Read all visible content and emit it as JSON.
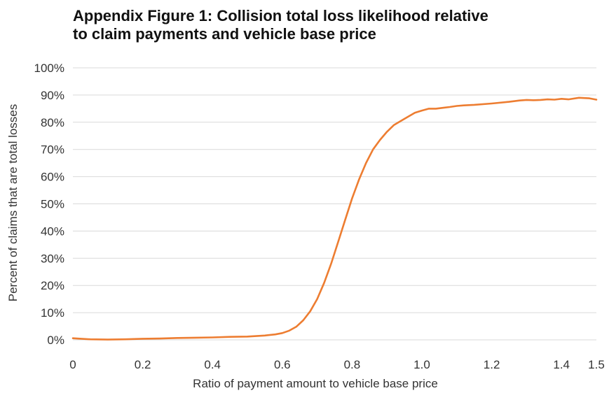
{
  "title_lines": [
    "Appendix Figure 1: Collision total loss likelihood relative",
    "to claim payments and vehicle base price"
  ],
  "chart_data": {
    "type": "line",
    "title": "Appendix Figure 1: Collision total loss likelihood relative to claim payments and vehicle base price",
    "xlabel": "Ratio of payment amount to vehicle base price",
    "ylabel": "Percent of claims that are total losses",
    "xlim": [
      0,
      1.5
    ],
    "ylim": [
      0,
      100
    ],
    "x_ticks": [
      0,
      0.2,
      0.4,
      0.6,
      0.8,
      1.0,
      1.2,
      1.4,
      1.5
    ],
    "x_tick_labels": [
      "0",
      "0.2",
      "0.4",
      "0.6",
      "0.8",
      "1.0",
      "1.2",
      "1.4",
      "1.5"
    ],
    "y_ticks": [
      0,
      10,
      20,
      30,
      40,
      50,
      60,
      70,
      80,
      90,
      100
    ],
    "y_tick_labels": [
      "0%",
      "10%",
      "20%",
      "30%",
      "40%",
      "50%",
      "60%",
      "70%",
      "80%",
      "90%",
      "100%"
    ],
    "grid": "horizontal",
    "color": "#ED7D31",
    "series": [
      {
        "x": [
          0.0,
          0.05,
          0.1,
          0.15,
          0.2,
          0.25,
          0.3,
          0.35,
          0.4,
          0.45,
          0.5,
          0.55,
          0.58,
          0.6,
          0.62,
          0.64,
          0.66,
          0.68,
          0.7,
          0.72,
          0.74,
          0.76,
          0.78,
          0.8,
          0.82,
          0.84,
          0.86,
          0.88,
          0.9,
          0.92,
          0.94,
          0.96,
          0.98,
          1.0,
          1.02,
          1.04,
          1.06,
          1.08,
          1.1,
          1.12,
          1.15,
          1.2,
          1.25,
          1.28,
          1.3,
          1.32,
          1.34,
          1.36,
          1.38,
          1.4,
          1.42,
          1.45,
          1.48,
          1.5
        ],
        "y": [
          0.6,
          0.2,
          0.1,
          0.2,
          0.4,
          0.5,
          0.7,
          0.8,
          0.9,
          1.1,
          1.2,
          1.6,
          2.0,
          2.5,
          3.4,
          4.8,
          7.2,
          10.5,
          15.0,
          21.0,
          28.0,
          36.0,
          44.0,
          52.0,
          59.0,
          65.0,
          70.0,
          73.5,
          76.5,
          79.0,
          80.5,
          82.0,
          83.5,
          84.3,
          85.0,
          85.0,
          85.3,
          85.6,
          86.0,
          86.2,
          86.4,
          86.9,
          87.5,
          88.0,
          88.2,
          88.1,
          88.2,
          88.4,
          88.3,
          88.6,
          88.4,
          89.0,
          88.8,
          88.3
        ]
      }
    ]
  }
}
